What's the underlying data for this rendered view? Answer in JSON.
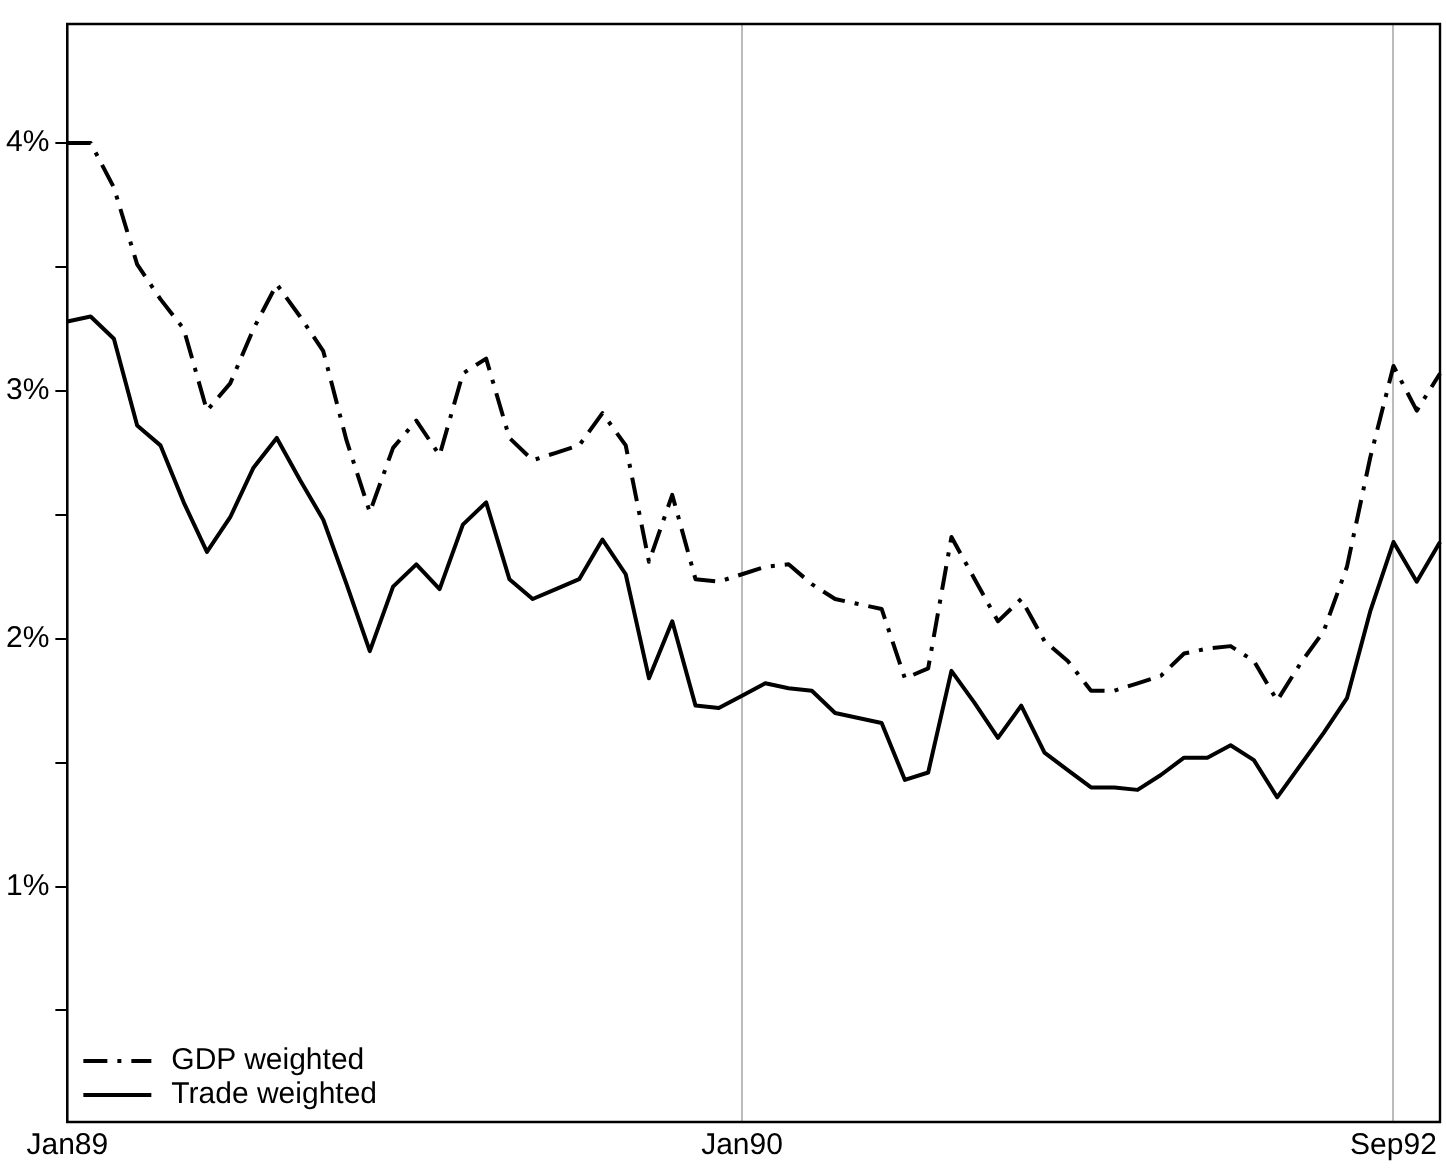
{
  "chart_data": {
    "type": "line",
    "categories": [
      "Jan89",
      null,
      null,
      null,
      null,
      null,
      null,
      null,
      null,
      null,
      null,
      null,
      null,
      null,
      null,
      null,
      null,
      null,
      null,
      null,
      null,
      null,
      null,
      null,
      null,
      null,
      null,
      null,
      null,
      "Jan90",
      null,
      null,
      null,
      null,
      null,
      null,
      null,
      null,
      null,
      null,
      null,
      null,
      null,
      null,
      null,
      null,
      null,
      null,
      null,
      null,
      null,
      null,
      null,
      null,
      null,
      null,
      null,
      "Sep92",
      null,
      null
    ],
    "ylim": [
      0.05,
      4.48
    ],
    "yticks": [
      {
        "value": 0.5,
        "label": null
      },
      {
        "value": 1,
        "label": "1%"
      },
      {
        "value": 1.5,
        "label": null
      },
      {
        "value": 2,
        "label": "2%"
      },
      {
        "value": 2.5,
        "label": null
      },
      {
        "value": 3,
        "label": "3%"
      },
      {
        "value": 3.5,
        "label": null
      },
      {
        "value": 4,
        "label": "4%"
      }
    ],
    "grid": "x",
    "legend": "bottom left",
    "marker": "none",
    "series": [
      {
        "name": "GDP weighted",
        "color": "#000000",
        "line_style": "dashed",
        "values": [
          4.0,
          4.0,
          3.82,
          3.51,
          3.37,
          3.25,
          2.92,
          3.03,
          3.25,
          3.43,
          3.3,
          3.16,
          2.8,
          2.51,
          2.77,
          2.88,
          2.74,
          3.07,
          3.13,
          2.81,
          2.72,
          2.75,
          2.78,
          2.91,
          2.78,
          2.31,
          2.58,
          2.24,
          2.23,
          2.26,
          2.29,
          2.3,
          2.22,
          2.16,
          2.14,
          2.12,
          1.84,
          1.88,
          2.41,
          2.24,
          2.07,
          2.16,
          1.99,
          1.91,
          1.79,
          1.79,
          1.82,
          1.85,
          1.94,
          1.96,
          1.97,
          1.91,
          1.75,
          1.9,
          2.03,
          2.29,
          2.73,
          3.1,
          2.92,
          3.07
        ]
      },
      {
        "name": "Trade weighted",
        "color": "#000000",
        "line_style": "solid",
        "values": [
          3.28,
          3.3,
          3.21,
          2.86,
          2.78,
          2.55,
          2.35,
          2.49,
          2.69,
          2.81,
          2.64,
          2.48,
          2.22,
          1.95,
          2.21,
          2.3,
          2.2,
          2.46,
          2.55,
          2.24,
          2.16,
          2.2,
          2.24,
          2.4,
          2.26,
          1.84,
          2.07,
          1.73,
          1.72,
          1.77,
          1.82,
          1.8,
          1.79,
          1.7,
          1.68,
          1.66,
          1.43,
          1.46,
          1.87,
          1.74,
          1.6,
          1.73,
          1.54,
          1.47,
          1.4,
          1.4,
          1.39,
          1.45,
          1.52,
          1.52,
          1.57,
          1.51,
          1.36,
          1.49,
          1.62,
          1.76,
          2.11,
          2.39,
          2.23,
          2.39
        ]
      }
    ]
  }
}
